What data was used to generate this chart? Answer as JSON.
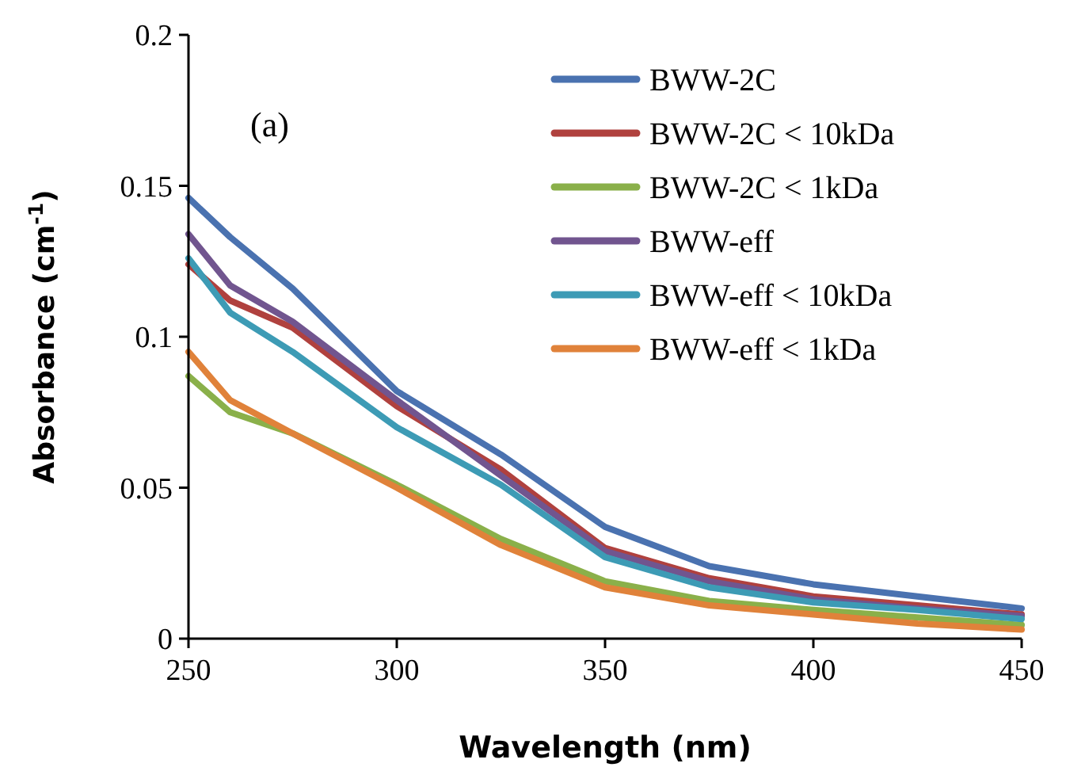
{
  "chart_data": {
    "type": "line",
    "xlabel": "Wavelength (nm)",
    "ylabel": "Absorbance (cm$^{-1}$)",
    "annotations": [
      "(a)"
    ],
    "x": [
      250,
      260,
      275,
      300,
      325,
      350,
      375,
      400,
      425,
      450
    ],
    "xlim": [
      250,
      450
    ],
    "xticks": [
      250,
      300,
      350,
      400,
      450
    ],
    "ylim": [
      0,
      0.2
    ],
    "yticks": [
      0,
      0.05,
      0.1,
      0.15,
      0.2
    ],
    "grid": false,
    "legend": "top right",
    "marker": "none",
    "line_style": "solid",
    "series": [
      {
        "name": "BWW-2C",
        "color": "#4a72b0",
        "values": [
          0.146,
          0.133,
          0.116,
          0.082,
          0.061,
          0.037,
          0.024,
          0.018,
          0.014,
          0.01
        ]
      },
      {
        "name": "BWW-2C < 10kDa",
        "color": "#b0413e",
        "values": [
          0.124,
          0.112,
          0.103,
          0.077,
          0.056,
          0.03,
          0.02,
          0.014,
          0.011,
          0.008
        ]
      },
      {
        "name": "BWW-2C < 1kDa",
        "color": "#8ab04a",
        "values": [
          0.087,
          0.075,
          0.068,
          0.051,
          0.033,
          0.019,
          0.0125,
          0.0095,
          0.007,
          0.0045
        ]
      },
      {
        "name": "BWW-eff",
        "color": "#71558f",
        "values": [
          0.134,
          0.117,
          0.105,
          0.079,
          0.054,
          0.029,
          0.019,
          0.013,
          0.01,
          0.0075
        ]
      },
      {
        "name": "BWW-eff < 10kDa",
        "color": "#3d9bb5",
        "values": [
          0.126,
          0.108,
          0.095,
          0.07,
          0.051,
          0.027,
          0.017,
          0.012,
          0.0095,
          0.0065
        ]
      },
      {
        "name": "BWW-eff < 1kDa",
        "color": "#e0823a",
        "values": [
          0.095,
          0.079,
          0.068,
          0.05,
          0.031,
          0.017,
          0.011,
          0.008,
          0.005,
          0.003
        ]
      }
    ]
  }
}
